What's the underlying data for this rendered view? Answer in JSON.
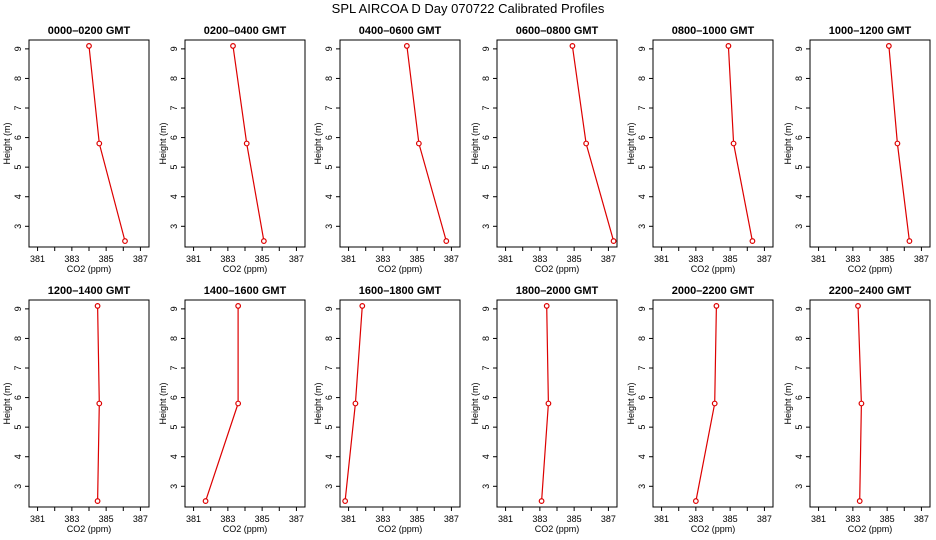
{
  "figure_title": "SPL AIRCOA D  Day 070722  Calibrated Profiles",
  "line_color": "#dd0000",
  "chart_data": [
    {
      "type": "line",
      "title": "0000–0200 GMT",
      "xlabel": "CO2 (ppm)",
      "ylabel": "Height (m)",
      "xlim": [
        380.5,
        387.5
      ],
      "ylim": [
        2.3,
        9.3
      ],
      "x_ticks": [
        "381",
        "383",
        "385",
        "387"
      ],
      "y_ticks": [
        "3",
        "4",
        "5",
        "6",
        "7",
        "8",
        "9"
      ],
      "points": [
        {
          "x": 384.0,
          "y": 9.1
        },
        {
          "x": 384.6,
          "y": 5.8
        },
        {
          "x": 386.1,
          "y": 2.5
        }
      ]
    },
    {
      "type": "line",
      "title": "0200–0400 GMT",
      "xlabel": "CO2 (ppm)",
      "ylabel": "Height (m)",
      "xlim": [
        380.5,
        387.5
      ],
      "ylim": [
        2.3,
        9.3
      ],
      "x_ticks": [
        "381",
        "383",
        "385",
        "387"
      ],
      "y_ticks": [
        "3",
        "4",
        "5",
        "6",
        "7",
        "8",
        "9"
      ],
      "points": [
        {
          "x": 383.3,
          "y": 9.1
        },
        {
          "x": 384.1,
          "y": 5.8
        },
        {
          "x": 385.1,
          "y": 2.5
        }
      ]
    },
    {
      "type": "line",
      "title": "0400–0600 GMT",
      "xlabel": "CO2 (ppm)",
      "ylabel": "Height (m)",
      "xlim": [
        380.5,
        387.5
      ],
      "ylim": [
        2.3,
        9.3
      ],
      "x_ticks": [
        "381",
        "383",
        "385",
        "387"
      ],
      "y_ticks": [
        "3",
        "4",
        "5",
        "6",
        "7",
        "8",
        "9"
      ],
      "points": [
        {
          "x": 384.4,
          "y": 9.1
        },
        {
          "x": 385.1,
          "y": 5.8
        },
        {
          "x": 386.7,
          "y": 2.5
        }
      ]
    },
    {
      "type": "line",
      "title": "0600–0800 GMT",
      "xlabel": "CO2 (ppm)",
      "ylabel": "Height (m)",
      "xlim": [
        380.5,
        387.5
      ],
      "ylim": [
        2.3,
        9.3
      ],
      "x_ticks": [
        "381",
        "383",
        "385",
        "387"
      ],
      "y_ticks": [
        "3",
        "4",
        "5",
        "6",
        "7",
        "8",
        "9"
      ],
      "points": [
        {
          "x": 384.9,
          "y": 9.1
        },
        {
          "x": 385.7,
          "y": 5.8
        },
        {
          "x": 387.3,
          "y": 2.5
        }
      ]
    },
    {
      "type": "line",
      "title": "0800–1000 GMT",
      "xlabel": "CO2 (ppm)",
      "ylabel": "Height (m)",
      "xlim": [
        380.5,
        387.5
      ],
      "ylim": [
        2.3,
        9.3
      ],
      "x_ticks": [
        "381",
        "383",
        "385",
        "387"
      ],
      "y_ticks": [
        "3",
        "4",
        "5",
        "6",
        "7",
        "8",
        "9"
      ],
      "points": [
        {
          "x": 384.9,
          "y": 9.1
        },
        {
          "x": 385.2,
          "y": 5.8
        },
        {
          "x": 386.3,
          "y": 2.5
        }
      ]
    },
    {
      "type": "line",
      "title": "1000–1200 GMT",
      "xlabel": "CO2 (ppm)",
      "ylabel": "Height (m)",
      "xlim": [
        380.5,
        387.5
      ],
      "ylim": [
        2.3,
        9.3
      ],
      "x_ticks": [
        "381",
        "383",
        "385",
        "387"
      ],
      "y_ticks": [
        "3",
        "4",
        "5",
        "6",
        "7",
        "8",
        "9"
      ],
      "points": [
        {
          "x": 385.1,
          "y": 9.1
        },
        {
          "x": 385.6,
          "y": 5.8
        },
        {
          "x": 386.3,
          "y": 2.5
        }
      ]
    },
    {
      "type": "line",
      "title": "1200–1400 GMT",
      "xlabel": "CO2 (ppm)",
      "ylabel": "Height (m)",
      "xlim": [
        380.5,
        387.5
      ],
      "ylim": [
        2.3,
        9.3
      ],
      "x_ticks": [
        "381",
        "383",
        "385",
        "387"
      ],
      "y_ticks": [
        "3",
        "4",
        "5",
        "6",
        "7",
        "8",
        "9"
      ],
      "points": [
        {
          "x": 384.5,
          "y": 9.1
        },
        {
          "x": 384.6,
          "y": 5.8
        },
        {
          "x": 384.5,
          "y": 2.5
        }
      ]
    },
    {
      "type": "line",
      "title": "1400–1600 GMT",
      "xlabel": "CO2 (ppm)",
      "ylabel": "Height (m)",
      "xlim": [
        380.5,
        387.5
      ],
      "ylim": [
        2.3,
        9.3
      ],
      "x_ticks": [
        "381",
        "383",
        "385",
        "387"
      ],
      "y_ticks": [
        "3",
        "4",
        "5",
        "6",
        "7",
        "8",
        "9"
      ],
      "points": [
        {
          "x": 383.6,
          "y": 9.1
        },
        {
          "x": 383.6,
          "y": 5.8
        },
        {
          "x": 381.7,
          "y": 2.5
        }
      ]
    },
    {
      "type": "line",
      "title": "1600–1800 GMT",
      "xlabel": "CO2 (ppm)",
      "ylabel": "Height (m)",
      "xlim": [
        380.5,
        387.5
      ],
      "ylim": [
        2.3,
        9.3
      ],
      "x_ticks": [
        "381",
        "383",
        "385",
        "387"
      ],
      "y_ticks": [
        "3",
        "4",
        "5",
        "6",
        "7",
        "8",
        "9"
      ],
      "points": [
        {
          "x": 381.8,
          "y": 9.1
        },
        {
          "x": 381.4,
          "y": 5.8
        },
        {
          "x": 380.8,
          "y": 2.5
        }
      ]
    },
    {
      "type": "line",
      "title": "1800–2000 GMT",
      "xlabel": "CO2 (ppm)",
      "ylabel": "Height (m)",
      "xlim": [
        380.5,
        387.5
      ],
      "ylim": [
        2.3,
        9.3
      ],
      "x_ticks": [
        "381",
        "383",
        "385",
        "387"
      ],
      "y_ticks": [
        "3",
        "4",
        "5",
        "6",
        "7",
        "8",
        "9"
      ],
      "points": [
        {
          "x": 383.4,
          "y": 9.1
        },
        {
          "x": 383.5,
          "y": 5.8
        },
        {
          "x": 383.1,
          "y": 2.5
        }
      ]
    },
    {
      "type": "line",
      "title": "2000–2200 GMT",
      "xlabel": "CO2 (ppm)",
      "ylabel": "Height (m)",
      "xlim": [
        380.5,
        387.5
      ],
      "ylim": [
        2.3,
        9.3
      ],
      "x_ticks": [
        "381",
        "383",
        "385",
        "387"
      ],
      "y_ticks": [
        "3",
        "4",
        "5",
        "6",
        "7",
        "8",
        "9"
      ],
      "points": [
        {
          "x": 384.2,
          "y": 9.1
        },
        {
          "x": 384.1,
          "y": 5.8
        },
        {
          "x": 383.0,
          "y": 2.5
        }
      ]
    },
    {
      "type": "line",
      "title": "2200–2400 GMT",
      "xlabel": "CO2 (ppm)",
      "ylabel": "Height (m)",
      "xlim": [
        380.5,
        387.5
      ],
      "ylim": [
        2.3,
        9.3
      ],
      "x_ticks": [
        "381",
        "383",
        "385",
        "387"
      ],
      "y_ticks": [
        "3",
        "4",
        "5",
        "6",
        "7",
        "8",
        "9"
      ],
      "points": [
        {
          "x": 383.3,
          "y": 9.1
        },
        {
          "x": 383.5,
          "y": 5.8
        },
        {
          "x": 383.4,
          "y": 2.5
        }
      ]
    }
  ]
}
